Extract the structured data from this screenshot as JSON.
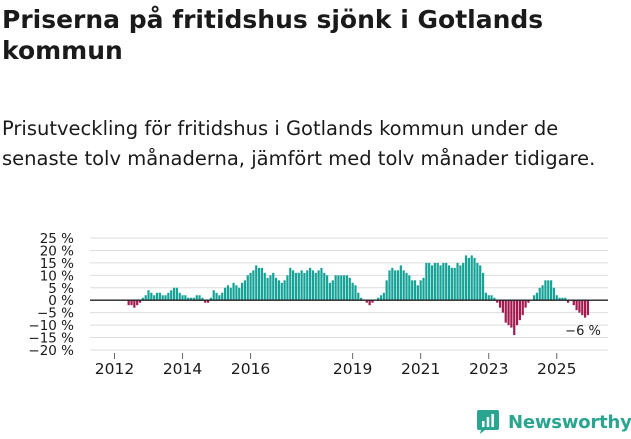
{
  "header": {
    "title": "Priserna på fritidshus sjönk i Gotlands kommun",
    "subtitle": "Prisutveckling för fritidshus i Gotlands kommun under de senaste tolv månaderna, jämfört med tolv månader tidigare."
  },
  "brand": {
    "name": "Newsworthy",
    "icon": "newsworthy-logo-icon"
  },
  "colors": {
    "positive": "#15a397",
    "negative": "#a3194f",
    "grid": "#dddddd",
    "axis": "#222222"
  },
  "chart_data": {
    "type": "bar",
    "title": "Prisutveckling för fritidshus i Gotlands kommun",
    "x_unit": "month",
    "x_start": "2011-10",
    "ylim": [
      -20,
      25
    ],
    "y_ticks": [
      {
        "value": 25,
        "label": "25 %"
      },
      {
        "value": 20,
        "label": "20 %"
      },
      {
        "value": 15,
        "label": "15 %"
      },
      {
        "value": 10,
        "label": "10 %"
      },
      {
        "value": 5,
        "label": "5 %"
      },
      {
        "value": 0,
        "label": "0 %"
      },
      {
        "value": -5,
        "label": "−5 %"
      },
      {
        "value": -10,
        "label": "−10 %"
      },
      {
        "value": -15,
        "label": "−15 %"
      },
      {
        "value": -20,
        "label": "−20 %"
      }
    ],
    "x_ticks": [
      {
        "month_index": 3,
        "label": "2012"
      },
      {
        "month_index": 27,
        "label": "2014"
      },
      {
        "month_index": 51,
        "label": "2016"
      },
      {
        "month_index": 87,
        "label": "2019"
      },
      {
        "month_index": 111,
        "label": "2021"
      },
      {
        "month_index": 135,
        "label": "2023"
      },
      {
        "month_index": 159,
        "label": "2025"
      }
    ],
    "last_value_label": "−6 %",
    "values": [
      0,
      0,
      0,
      0,
      0,
      0,
      0,
      0,
      -2,
      -2,
      -3,
      -2,
      -1,
      1,
      2,
      4,
      3,
      2,
      3,
      3,
      2,
      2,
      3,
      4,
      5,
      5,
      3,
      2,
      2,
      1,
      1,
      1,
      2,
      2,
      1,
      -1,
      -1,
      1,
      4,
      3,
      2,
      3,
      5,
      6,
      5,
      7,
      6,
      5,
      7,
      8,
      10,
      11,
      12,
      14,
      13,
      13,
      11,
      9,
      10,
      11,
      9,
      8,
      7,
      8,
      10,
      13,
      12,
      11,
      11,
      12,
      11,
      12,
      13,
      12,
      11,
      12,
      13,
      11,
      10,
      7,
      8,
      10,
      10,
      10,
      10,
      10,
      9,
      7,
      6,
      3,
      1,
      0,
      -1,
      -2,
      -1,
      0,
      1,
      2,
      3,
      8,
      12,
      13,
      12,
      12,
      14,
      12,
      11,
      10,
      8,
      8,
      6,
      8,
      9,
      15,
      15,
      14,
      15,
      15,
      14,
      15,
      15,
      14,
      13,
      13,
      15,
      14,
      15,
      18,
      17,
      18,
      17,
      15,
      14,
      11,
      3,
      2,
      2,
      1,
      -1,
      -3,
      -5,
      -9,
      -10,
      -11,
      -14,
      -10,
      -8,
      -6,
      -3,
      -1,
      0,
      2,
      3,
      5,
      6,
      8,
      8,
      8,
      5,
      2,
      1,
      1,
      1,
      -1,
      0,
      -2,
      -4,
      -5,
      -6,
      -7,
      -6
    ]
  }
}
